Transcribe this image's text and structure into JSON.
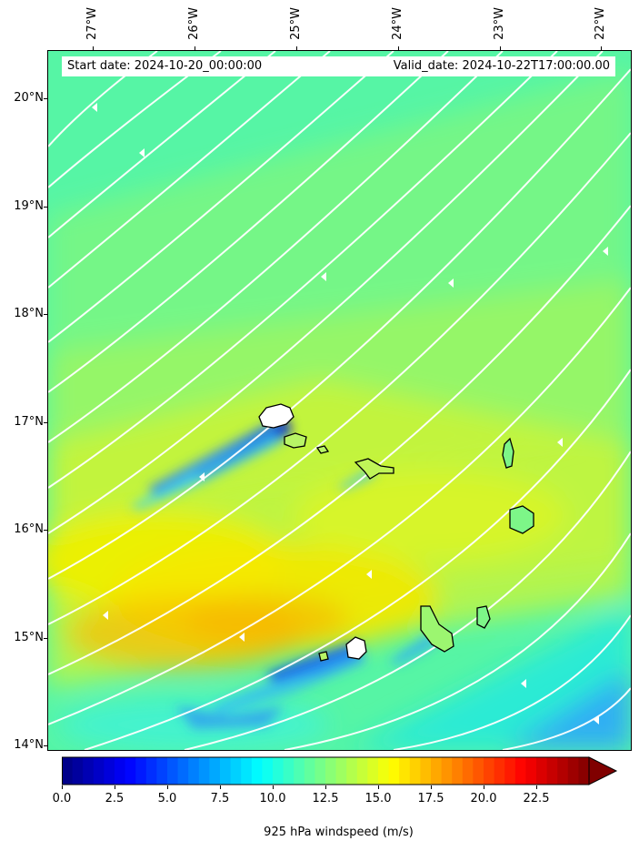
{
  "header": {
    "start_date": "Start date: 2024-10-20_00:00:00",
    "valid_date": "Valid_date: 2024-10-22T17:00:00.00"
  },
  "map": {
    "lat_range": [
      13.95,
      20.45
    ],
    "lon_range": [
      -27.45,
      -21.7
    ],
    "lat_ticks": [
      {
        "value": 20,
        "label": "20°N"
      },
      {
        "value": 19,
        "label": "19°N"
      },
      {
        "value": 18,
        "label": "18°N"
      },
      {
        "value": 17,
        "label": "17°N"
      },
      {
        "value": 16,
        "label": "16°N"
      },
      {
        "value": 15,
        "label": "15°N"
      },
      {
        "value": 14,
        "label": "14°N"
      }
    ],
    "lon_ticks": [
      {
        "value": -27,
        "label": "27°W"
      },
      {
        "value": -26,
        "label": "26°W"
      },
      {
        "value": -25,
        "label": "25°W"
      },
      {
        "value": -24,
        "label": "24°W"
      },
      {
        "value": -23,
        "label": "23°W"
      },
      {
        "value": -22,
        "label": "22°W"
      }
    ],
    "islands": [
      "Santo Antão",
      "São Vicente",
      "Santa Luzia",
      "São Nicolau",
      "Sal",
      "Boa Vista",
      "Santiago",
      "Maio",
      "Fogo",
      "Brava"
    ],
    "background_color": "#5cf5a0",
    "streamline_color": "#ffffff",
    "coastline_color": "#000000"
  },
  "colorbar": {
    "title": "925 hPa windspeed (m/s)",
    "min": 0,
    "max": 25,
    "step": 0.5,
    "ticks": [
      "0.0",
      "2.5",
      "5.0",
      "7.5",
      "10.0",
      "12.5",
      "15.0",
      "17.5",
      "20.0",
      "22.5"
    ],
    "extend": "max",
    "colormap": "jet"
  }
}
